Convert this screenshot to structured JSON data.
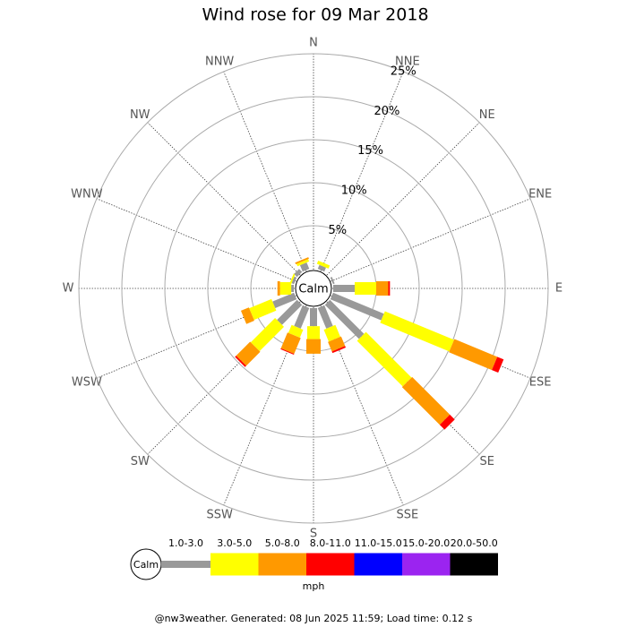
{
  "chart_data": {
    "type": "wind_rose",
    "title": "Wind rose for 09 Mar 2018",
    "directions": [
      "N",
      "NNE",
      "NE",
      "ENE",
      "E",
      "ESE",
      "SE",
      "SSE",
      "S",
      "SSW",
      "SW",
      "WSW",
      "W",
      "WNW",
      "NW",
      "NNW"
    ],
    "center_label": "Calm",
    "rlim": [
      0,
      25
    ],
    "rticks": [
      {
        "value": 5,
        "label": "5%"
      },
      {
        "value": 10,
        "label": "10%"
      },
      {
        "value": 15,
        "label": "15%"
      },
      {
        "value": 20,
        "label": "20%"
      },
      {
        "value": 25,
        "label": "25%"
      }
    ],
    "unit": "mph",
    "series": [
      {
        "name": "1.0-3.0",
        "color": "#999999",
        "values": [
          0,
          0.5,
          0,
          0.2,
          2.5,
          6.4,
          5.6,
          2.6,
          2.1,
          2.6,
          3.3,
          2.7,
          0.3,
          0.3,
          0.5,
          0.8
        ]
      },
      {
        "name": "3.0-5.0",
        "color": "#ffff00",
        "values": [
          0,
          0.4,
          0,
          0,
          2.5,
          8.7,
          7.5,
          1.5,
          1.5,
          1.0,
          4.0,
          2.8,
          1.3,
          0.2,
          0,
          0.3
        ]
      },
      {
        "name": "5.0-8.0",
        "color": "#ff9900",
        "values": [
          0,
          0,
          0,
          0,
          1.4,
          5.4,
          6.2,
          1.2,
          1.7,
          2.0,
          2.3,
          1.0,
          0.3,
          0,
          0,
          0.2
        ]
      },
      {
        "name": "8.0-11.0",
        "color": "#ff0000",
        "values": [
          0,
          0,
          0,
          0,
          0.2,
          0.8,
          0.8,
          0.2,
          0,
          0.1,
          0.2,
          0,
          0,
          0,
          0,
          0
        ]
      },
      {
        "name": "11.0-15.0",
        "color": "#0000ff",
        "values": [
          0,
          0,
          0,
          0,
          0,
          0,
          0,
          0,
          0,
          0,
          0,
          0,
          0,
          0,
          0,
          0
        ]
      },
      {
        "name": "15.0-20.0",
        "color": "#9b24f0",
        "values": [
          0,
          0,
          0,
          0,
          0,
          0,
          0,
          0,
          0,
          0,
          0,
          0,
          0,
          0,
          0,
          0
        ]
      },
      {
        "name": "20.0-50.0",
        "color": "#000000",
        "values": [
          0,
          0,
          0,
          0,
          0,
          0,
          0,
          0,
          0,
          0,
          0,
          0,
          0,
          0,
          0,
          0
        ]
      }
    ],
    "footer": "@nw3weather. Generated: 08 Jun 2025 11:59; Load time: 0.12 s"
  }
}
